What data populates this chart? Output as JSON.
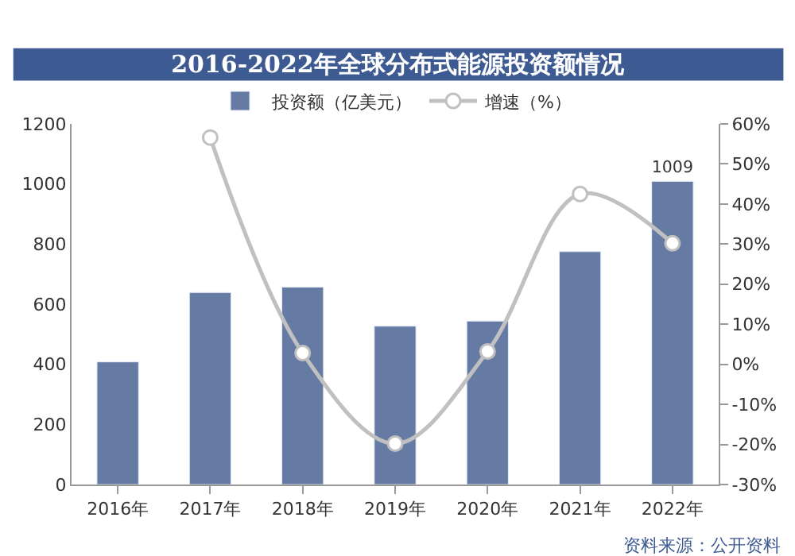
{
  "chart_data": {
    "type": "bar",
    "title": "2016-2022年全球分布式能源投资额情况",
    "categories": [
      "2016年",
      "2017年",
      "2018年",
      "2019年",
      "2020年",
      "2021年",
      "2022年"
    ],
    "series": [
      {
        "name": "投资额（亿美元）",
        "color": "#667ba3",
        "values": [
          408,
          639,
          657,
          527,
          544,
          775,
          1009
        ],
        "value_labels": [
          null,
          null,
          null,
          null,
          null,
          null,
          "1009"
        ]
      },
      {
        "name": "增速（%）",
        "type": "line",
        "axis": "y2",
        "color": "#c0c0c0",
        "marker": "circle",
        "values": [
          null,
          56.6,
          2.8,
          -19.8,
          3.2,
          42.5,
          30.2
        ]
      }
    ],
    "ylim": [
      0,
      1200
    ],
    "yticks": [
      0,
      200,
      400,
      600,
      800,
      1000,
      1200
    ],
    "y2lim": [
      -30,
      60
    ],
    "y2ticks": [
      {
        "value": -30,
        "label": "-30%"
      },
      {
        "value": -20,
        "label": "-20%"
      },
      {
        "value": -10,
        "label": "-10%"
      },
      {
        "value": 0,
        "label": "0%"
      },
      {
        "value": 10,
        "label": "10%"
      },
      {
        "value": 20,
        "label": "20%"
      },
      {
        "value": 30,
        "label": "30%"
      },
      {
        "value": 40,
        "label": "40%"
      },
      {
        "value": 50,
        "label": "50%"
      },
      {
        "value": 60,
        "label": "60%"
      }
    ],
    "legend": "top",
    "annotations": [
      "资料来源：公开资料"
    ]
  }
}
